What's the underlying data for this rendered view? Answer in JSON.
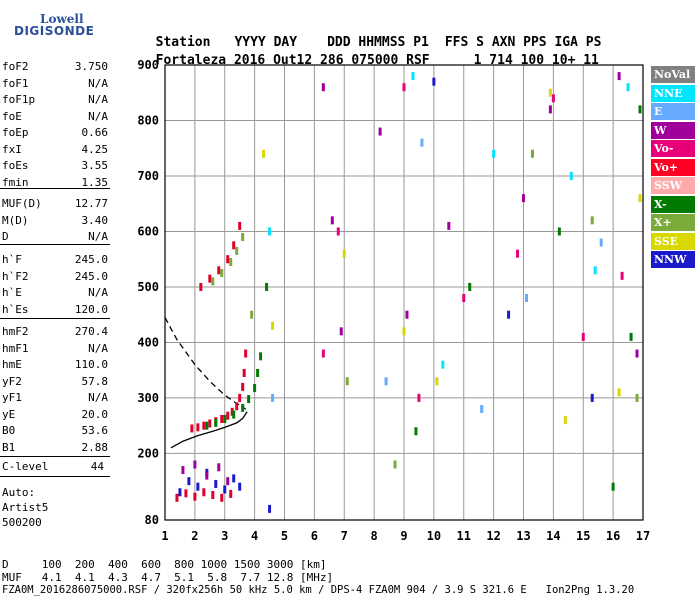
{
  "logo": {
    "top": "Lowell",
    "bottom": "DIGISONDE"
  },
  "header": {
    "labels": [
      "Station",
      "YYYY",
      "DAY",
      "DDD",
      "HHMMSS",
      "P1",
      "FFS",
      "S",
      "AXN",
      "PPS",
      "IGA",
      "PS"
    ],
    "values": [
      "Fortaleza",
      "2016",
      "Out12",
      "286",
      "075000",
      "RSF",
      "",
      "1",
      "714",
      "100",
      "10+",
      "11"
    ]
  },
  "params_group1": [
    {
      "k": "foF2",
      "v": "3.750"
    },
    {
      "k": "foF1",
      "v": "N/A"
    },
    {
      "k": "foF1p",
      "v": "N/A"
    },
    {
      "k": "foE",
      "v": "N/A"
    },
    {
      "k": "foEp",
      "v": "0.66"
    },
    {
      "k": "fxI",
      "v": "4.25"
    },
    {
      "k": "foEs",
      "v": "3.55"
    },
    {
      "k": "fmin",
      "v": "1.35"
    }
  ],
  "params_group2": [
    {
      "k": "MUF(D)",
      "v": "12.77"
    },
    {
      "k": "M(D)",
      "v": "3.40"
    },
    {
      "k": "D",
      "v": "N/A"
    }
  ],
  "params_group3": [
    {
      "k": "h`F",
      "v": "245.0"
    },
    {
      "k": "h`F2",
      "v": "245.0"
    },
    {
      "k": "h`E",
      "v": "N/A"
    },
    {
      "k": "h`Es",
      "v": "120.0"
    }
  ],
  "params_group4": [
    {
      "k": "hmF2",
      "v": "270.4"
    },
    {
      "k": "hmF1",
      "v": "N/A"
    },
    {
      "k": "hmE",
      "v": "110.0"
    },
    {
      "k": "yF2",
      "v": "57.8"
    },
    {
      "k": "yF1",
      "v": "N/A"
    },
    {
      "k": "yE",
      "v": "20.0"
    },
    {
      "k": "B0",
      "v": "53.6"
    },
    {
      "k": "B1",
      "v": "2.88"
    }
  ],
  "clevel": {
    "k": "C-level",
    "v": "44"
  },
  "auto": [
    "Auto:",
    "Artist5",
    "500200"
  ],
  "legend": [
    {
      "label": "NoVal",
      "color": "#808080"
    },
    {
      "label": "NNE",
      "color": "#00e5ff"
    },
    {
      "label": "E",
      "color": "#66aaff"
    },
    {
      "label": "W",
      "color": "#a0009a"
    },
    {
      "label": "Vo-",
      "color": "#e8007a"
    },
    {
      "label": "Vo+",
      "color": "#ff0022"
    },
    {
      "label": "SSW",
      "color": "#ffaaaa"
    },
    {
      "label": "X-",
      "color": "#007a00"
    },
    {
      "label": "X+",
      "color": "#7aaa3a"
    },
    {
      "label": "SSE",
      "color": "#d8d800"
    },
    {
      "label": "NNW",
      "color": "#1a1ac8"
    }
  ],
  "footer": {
    "line1": "D     100  200  400  600  800 1000 1500 3000 [km]",
    "line2": "MUF   4.1  4.1  4.3  4.7  5.1  5.8  7.7 12.8 [MHz]",
    "line3": "FZA0M_2016286075000.RSF / 320fx256h 50 kHz 5.0 km / DPS-4 FZA0M 904 / 3.9 S 321.6 E   Ion2Png 1.3.20"
  },
  "chart_data": {
    "type": "scatter",
    "title": "",
    "xlabel": "",
    "ylabel": "",
    "xlim": [
      1,
      17
    ],
    "ylim": [
      80,
      900
    ],
    "x_ticks": [
      1,
      2,
      3,
      4,
      5,
      6,
      7,
      8,
      9,
      10,
      11,
      12,
      13,
      14,
      15,
      16,
      17
    ],
    "y_ticks": [
      80,
      200,
      300,
      400,
      500,
      600,
      700,
      800,
      900
    ],
    "grid": true,
    "legend_position": "right",
    "traces": [
      {
        "name": "dashed",
        "style": "dashed",
        "color": "#000000",
        "x": [
          1.0,
          1.4,
          2.0,
          2.5,
          3.0,
          3.4,
          3.7
        ],
        "y": [
          445,
          405,
          360,
          330,
          305,
          290,
          280
        ]
      },
      {
        "name": "solid",
        "style": "solid",
        "color": "#000000",
        "x": [
          1.2,
          1.6,
          2.1,
          2.6,
          3.0,
          3.4,
          3.6,
          3.75
        ],
        "y": [
          210,
          222,
          232,
          240,
          247,
          255,
          263,
          275
        ]
      }
    ],
    "point_groups": [
      {
        "name": "F2 trace (O)",
        "color": "#e0002a",
        "x": [
          1.9,
          2.1,
          2.3,
          2.5,
          2.7,
          2.9,
          3.1,
          3.25,
          3.4,
          3.5,
          3.6,
          3.65,
          3.7
        ],
        "y": [
          245,
          247,
          250,
          254,
          258,
          262,
          268,
          275,
          285,
          300,
          320,
          345,
          380
        ]
      },
      {
        "name": "F2 trace (X)",
        "color": "#007a00",
        "x": [
          2.4,
          2.7,
          3.0,
          3.3,
          3.6,
          3.8,
          4.0,
          4.1,
          4.2
        ],
        "y": [
          250,
          255,
          262,
          270,
          282,
          298,
          318,
          345,
          375
        ]
      },
      {
        "name": "F2 echo upper",
        "color": "#e0002a",
        "x": [
          2.2,
          2.5,
          2.8,
          3.1,
          3.3,
          3.5
        ],
        "y": [
          500,
          515,
          530,
          550,
          575,
          610
        ]
      },
      {
        "name": "F2 echo upper (X)",
        "color": "#7aaa3a",
        "x": [
          2.6,
          2.9,
          3.2,
          3.4,
          3.6
        ],
        "y": [
          510,
          525,
          545,
          565,
          590
        ]
      },
      {
        "name": "low layer",
        "color": "#1a1ac8",
        "x": [
          1.5,
          1.8,
          2.1,
          2.4,
          2.7,
          3.0,
          3.3,
          3.5
        ],
        "y": [
          130,
          150,
          140,
          165,
          145,
          135,
          155,
          140
        ]
      },
      {
        "name": "low layer (O)",
        "color": "#e0002a",
        "x": [
          1.4,
          1.7,
          2.0,
          2.3,
          2.6,
          2.9,
          3.2
        ],
        "y": [
          120,
          128,
          122,
          130,
          125,
          120,
          127
        ]
      },
      {
        "name": "low layer (W)",
        "color": "#a0009a",
        "x": [
          1.6,
          2.0,
          2.4,
          2.8,
          3.1
        ],
        "y": [
          170,
          180,
          160,
          175,
          150
        ]
      },
      {
        "name": "spread W",
        "color": "#a0009a",
        "x": [
          6.3,
          6.6,
          6.9,
          8.2,
          9.1,
          10.5,
          13.0,
          13.9,
          16.2,
          16.8
        ],
        "y": [
          860,
          620,
          420,
          780,
          450,
          610,
          660,
          820,
          880,
          380
        ]
      },
      {
        "name": "spread Vo-",
        "color": "#e8007a",
        "x": [
          6.3,
          6.8,
          9.0,
          9.5,
          11.0,
          12.8,
          14.0,
          15.0,
          16.3
        ],
        "y": [
          380,
          600,
          860,
          300,
          480,
          560,
          840,
          410,
          520
        ]
      },
      {
        "name": "spread SSE",
        "color": "#d8d800",
        "x": [
          4.3,
          4.6,
          7.0,
          9.0,
          10.1,
          13.9,
          14.4,
          16.2,
          16.9
        ],
        "y": [
          740,
          430,
          560,
          420,
          330,
          850,
          260,
          310,
          660
        ]
      },
      {
        "name": "spread X-",
        "color": "#007a00",
        "x": [
          4.4,
          9.4,
          11.2,
          14.2,
          16.0,
          16.6,
          16.9
        ],
        "y": [
          500,
          240,
          500,
          600,
          140,
          410,
          820
        ]
      },
      {
        "name": "spread NNE",
        "color": "#00e5ff",
        "x": [
          4.5,
          9.3,
          10.3,
          12.0,
          14.6,
          15.4,
          16.5
        ],
        "y": [
          600,
          880,
          360,
          740,
          700,
          530,
          860
        ]
      },
      {
        "name": "spread E",
        "color": "#66aaff",
        "x": [
          4.6,
          8.4,
          9.6,
          11.6,
          13.1,
          15.6
        ],
        "y": [
          300,
          330,
          760,
          280,
          480,
          580
        ]
      },
      {
        "name": "spread X+",
        "color": "#7aaa3a",
        "x": [
          3.9,
          7.1,
          8.7,
          13.3,
          15.3,
          16.8
        ],
        "y": [
          450,
          330,
          180,
          740,
          620,
          300
        ]
      },
      {
        "name": "spread NNW",
        "color": "#1a1ac8",
        "x": [
          4.5,
          10.0,
          12.5,
          15.3
        ],
        "y": [
          100,
          870,
          450,
          300
        ]
      }
    ]
  }
}
